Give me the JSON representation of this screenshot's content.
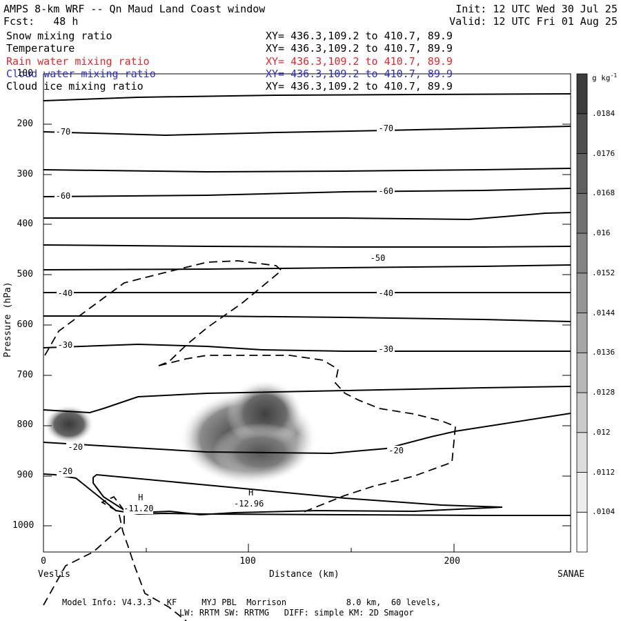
{
  "header": {
    "title": "AMPS 8-km WRF -- Qn Maud Land Coast window",
    "init": "Init: 12 UTC Wed 30 Jul 25",
    "fcst": "Fcst:   48 h",
    "valid": "Valid: 12 UTC Fri 01 Aug 25"
  },
  "fields": [
    {
      "name": "Snow mixing ratio",
      "xy": "XY= 436.3,109.2 to 410.7, 89.9",
      "color": "#000000"
    },
    {
      "name": "Temperature",
      "xy": "XY= 436.3,109.2 to 410.7, 89.9",
      "color": "#000000"
    },
    {
      "name": "Rain water mixing ratio",
      "xy": "XY= 436.3,109.2 to 410.7, 89.9",
      "color": "#e8262b"
    },
    {
      "name": "Cloud water mixing ratio",
      "xy": "XY= 436.3,109.2 to 410.7, 89.9",
      "color": "#2b2bd6"
    },
    {
      "name": "Cloud ice mixing ratio",
      "xy": "XY= 436.3,109.2 to 410.7, 89.9",
      "color": "#000000"
    }
  ],
  "footer": {
    "line1": "Model Info: V4.3.3   KF     MYJ PBL  Morrison            8.0 km,  60 levels,",
    "line2": "LW: RRTM SW: RRTMG   DIFF: simple KM: 2D Smagor"
  },
  "chart_data": {
    "type": "cross-section",
    "xlabel": "Distance (km)",
    "ylabel": "Pressure (hPa)",
    "x_endpoints": {
      "left": "Veslis",
      "right": "SANAE"
    },
    "x_ticks": [
      0,
      100,
      200
    ],
    "xlim": [
      0,
      258
    ],
    "y_ticks": [
      100,
      200,
      300,
      400,
      500,
      600,
      700,
      800,
      900,
      1000
    ],
    "ylim": [
      1050,
      100
    ],
    "temperature_labels": [
      {
        "text": "-70",
        "x": 10,
        "p": 217
      },
      {
        "text": "-70",
        "x": 168,
        "p": 210
      },
      {
        "text": "-60",
        "x": 10,
        "p": 345
      },
      {
        "text": "-60",
        "x": 168,
        "p": 335
      },
      {
        "text": "-50",
        "x": 164,
        "p": 468
      },
      {
        "text": "-40",
        "x": 11,
        "p": 538
      },
      {
        "text": "-40",
        "x": 168,
        "p": 538
      },
      {
        "text": "-30",
        "x": 11,
        "p": 642
      },
      {
        "text": "-30",
        "x": 168,
        "p": 650
      },
      {
        "text": "-20",
        "x": 16,
        "p": 845
      },
      {
        "text": "-20",
        "x": 173,
        "p": 852
      },
      {
        "text": "-20",
        "x": 11,
        "p": 893
      }
    ],
    "minima_labels": [
      {
        "mark": "H",
        "value": "-11.20",
        "x": 48,
        "p": 945
      },
      {
        "mark": "H",
        "value": "-12.96",
        "x": 102,
        "p": 936
      }
    ],
    "colorbar": {
      "unit": "g kg",
      "unit_exp": "-1",
      "levels": [
        ".0104",
        ".0112",
        ".012",
        ".0128",
        ".0136",
        ".0144",
        ".0152",
        ".016",
        ".0168",
        ".0176",
        ".0184"
      ]
    }
  }
}
